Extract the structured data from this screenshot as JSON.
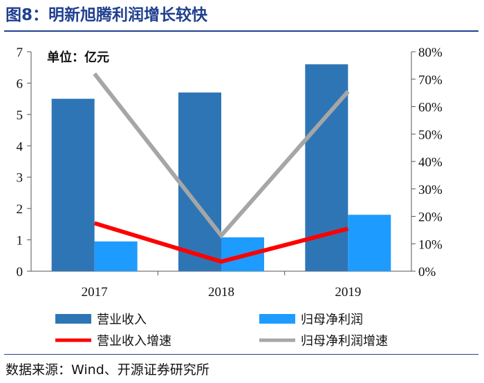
{
  "title": "图8：明新旭腾利润增长较快",
  "source": "数据来源：Wind、开源证券研究所",
  "chart_data": {
    "type": "bar",
    "unit_label": "单位：亿元",
    "categories": [
      "2017",
      "2018",
      "2019"
    ],
    "series": [
      {
        "name": "营业收入",
        "kind": "bar",
        "axis": "left",
        "color": "#2e75b6",
        "values": [
          5.5,
          5.7,
          6.6
        ]
      },
      {
        "name": "归母净利润",
        "kind": "bar",
        "axis": "left",
        "color": "#1e9bff",
        "values": [
          0.95,
          1.08,
          1.8
        ]
      },
      {
        "name": "营业收入增速",
        "kind": "line",
        "axis": "right",
        "color": "#ff0000",
        "values": [
          0.175,
          0.035,
          0.155
        ]
      },
      {
        "name": "归母净利润增速",
        "kind": "line",
        "axis": "right",
        "color": "#a6a6a6",
        "values": [
          0.72,
          0.13,
          0.655
        ]
      }
    ],
    "y_left": {
      "min": 0,
      "max": 7,
      "ticks": [
        "0",
        "1",
        "2",
        "3",
        "4",
        "5",
        "6",
        "7"
      ]
    },
    "y_right": {
      "min": 0,
      "max": 0.8,
      "ticks": [
        "0%",
        "10%",
        "20%",
        "30%",
        "40%",
        "50%",
        "60%",
        "70%",
        "80%"
      ]
    },
    "legend_position": "bottom",
    "grid": false
  }
}
